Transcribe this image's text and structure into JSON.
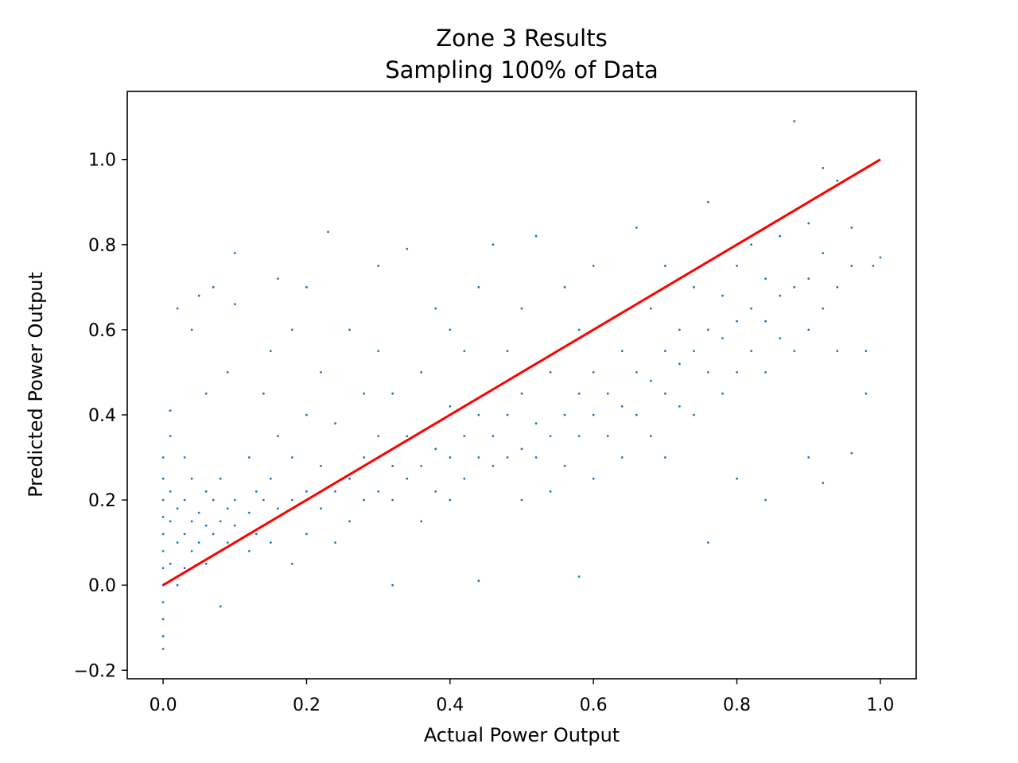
{
  "chart_data": {
    "type": "scatter",
    "title": [
      "Zone 3 Results",
      "Sampling 100% of Data"
    ],
    "xlabel": "Actual Power Output",
    "ylabel": "Predicted Power Output",
    "xlim": [
      -0.05,
      1.05
    ],
    "ylim": [
      -0.22,
      1.16
    ],
    "xticks": [
      0.0,
      0.2,
      0.4,
      0.6,
      0.8,
      1.0
    ],
    "xtick_labels": [
      "0.0",
      "0.2",
      "0.4",
      "0.6",
      "0.8",
      "1.0"
    ],
    "yticks": [
      -0.2,
      0.0,
      0.2,
      0.4,
      0.6,
      0.8,
      1.0
    ],
    "ytick_labels": [
      "−0.2",
      "0.0",
      "0.2",
      "0.4",
      "0.6",
      "0.8",
      "1.0"
    ],
    "grid": false,
    "series": [
      {
        "kind": "scatter",
        "color": "#1f77b4",
        "points": [
          [
            0.0,
            -0.15
          ],
          [
            0.0,
            -0.12
          ],
          [
            0.0,
            -0.08
          ],
          [
            0.0,
            -0.04
          ],
          [
            0.0,
            0.0
          ],
          [
            0.0,
            0.04
          ],
          [
            0.0,
            0.08
          ],
          [
            0.0,
            0.12
          ],
          [
            0.0,
            0.16
          ],
          [
            0.0,
            0.2
          ],
          [
            0.0,
            0.25
          ],
          [
            0.0,
            0.3
          ],
          [
            0.01,
            0.05
          ],
          [
            0.01,
            0.15
          ],
          [
            0.01,
            0.22
          ],
          [
            0.01,
            0.35
          ],
          [
            0.01,
            0.41
          ],
          [
            0.02,
            0.0
          ],
          [
            0.02,
            0.1
          ],
          [
            0.02,
            0.18
          ],
          [
            0.02,
            0.65
          ],
          [
            0.03,
            0.04
          ],
          [
            0.03,
            0.12
          ],
          [
            0.03,
            0.2
          ],
          [
            0.03,
            0.3
          ],
          [
            0.04,
            0.08
          ],
          [
            0.04,
            0.15
          ],
          [
            0.04,
            0.25
          ],
          [
            0.04,
            0.6
          ],
          [
            0.05,
            0.1
          ],
          [
            0.05,
            0.17
          ],
          [
            0.05,
            0.68
          ],
          [
            0.06,
            0.05
          ],
          [
            0.06,
            0.14
          ],
          [
            0.06,
            0.22
          ],
          [
            0.06,
            0.45
          ],
          [
            0.07,
            0.12
          ],
          [
            0.07,
            0.2
          ],
          [
            0.07,
            0.7
          ],
          [
            0.08,
            -0.05
          ],
          [
            0.08,
            0.15
          ],
          [
            0.08,
            0.25
          ],
          [
            0.09,
            0.1
          ],
          [
            0.09,
            0.18
          ],
          [
            0.09,
            0.5
          ],
          [
            0.1,
            0.14
          ],
          [
            0.1,
            0.2
          ],
          [
            0.1,
            0.78
          ],
          [
            0.1,
            0.66
          ],
          [
            0.12,
            0.08
          ],
          [
            0.12,
            0.17
          ],
          [
            0.12,
            0.3
          ],
          [
            0.13,
            0.12
          ],
          [
            0.13,
            0.22
          ],
          [
            0.14,
            0.2
          ],
          [
            0.14,
            0.45
          ],
          [
            0.15,
            0.1
          ],
          [
            0.15,
            0.25
          ],
          [
            0.15,
            0.55
          ],
          [
            0.16,
            0.18
          ],
          [
            0.16,
            0.35
          ],
          [
            0.16,
            0.72
          ],
          [
            0.18,
            0.05
          ],
          [
            0.18,
            0.2
          ],
          [
            0.18,
            0.3
          ],
          [
            0.18,
            0.6
          ],
          [
            0.2,
            0.12
          ],
          [
            0.2,
            0.22
          ],
          [
            0.2,
            0.4
          ],
          [
            0.2,
            0.7
          ],
          [
            0.22,
            0.18
          ],
          [
            0.22,
            0.28
          ],
          [
            0.22,
            0.5
          ],
          [
            0.23,
            0.83
          ],
          [
            0.24,
            0.1
          ],
          [
            0.24,
            0.22
          ],
          [
            0.24,
            0.38
          ],
          [
            0.26,
            0.15
          ],
          [
            0.26,
            0.25
          ],
          [
            0.26,
            0.6
          ],
          [
            0.28,
            0.2
          ],
          [
            0.28,
            0.3
          ],
          [
            0.28,
            0.45
          ],
          [
            0.3,
            0.22
          ],
          [
            0.3,
            0.35
          ],
          [
            0.3,
            0.55
          ],
          [
            0.3,
            0.75
          ],
          [
            0.32,
            0.0
          ],
          [
            0.32,
            0.2
          ],
          [
            0.32,
            0.28
          ],
          [
            0.32,
            0.45
          ],
          [
            0.34,
            0.25
          ],
          [
            0.34,
            0.35
          ],
          [
            0.34,
            0.79
          ],
          [
            0.36,
            0.15
          ],
          [
            0.36,
            0.28
          ],
          [
            0.36,
            0.5
          ],
          [
            0.38,
            0.22
          ],
          [
            0.38,
            0.32
          ],
          [
            0.38,
            0.65
          ],
          [
            0.4,
            0.2
          ],
          [
            0.4,
            0.3
          ],
          [
            0.4,
            0.42
          ],
          [
            0.4,
            0.6
          ],
          [
            0.42,
            0.25
          ],
          [
            0.42,
            0.35
          ],
          [
            0.42,
            0.55
          ],
          [
            0.44,
            0.01
          ],
          [
            0.44,
            0.3
          ],
          [
            0.44,
            0.4
          ],
          [
            0.44,
            0.7
          ],
          [
            0.46,
            0.28
          ],
          [
            0.46,
            0.35
          ],
          [
            0.46,
            0.8
          ],
          [
            0.48,
            0.3
          ],
          [
            0.48,
            0.4
          ],
          [
            0.48,
            0.55
          ],
          [
            0.5,
            0.2
          ],
          [
            0.5,
            0.32
          ],
          [
            0.5,
            0.45
          ],
          [
            0.5,
            0.65
          ],
          [
            0.52,
            0.3
          ],
          [
            0.52,
            0.38
          ],
          [
            0.52,
            0.82
          ],
          [
            0.54,
            0.22
          ],
          [
            0.54,
            0.35
          ],
          [
            0.54,
            0.5
          ],
          [
            0.56,
            0.28
          ],
          [
            0.56,
            0.4
          ],
          [
            0.56,
            0.7
          ],
          [
            0.58,
            0.02
          ],
          [
            0.58,
            0.35
          ],
          [
            0.58,
            0.45
          ],
          [
            0.58,
            0.6
          ],
          [
            0.6,
            0.25
          ],
          [
            0.6,
            0.4
          ],
          [
            0.6,
            0.5
          ],
          [
            0.6,
            0.75
          ],
          [
            0.62,
            0.35
          ],
          [
            0.62,
            0.45
          ],
          [
            0.62,
            0.62
          ],
          [
            0.64,
            0.3
          ],
          [
            0.64,
            0.42
          ],
          [
            0.64,
            0.55
          ],
          [
            0.66,
            0.4
          ],
          [
            0.66,
            0.5
          ],
          [
            0.66,
            0.84
          ],
          [
            0.68,
            0.35
          ],
          [
            0.68,
            0.48
          ],
          [
            0.68,
            0.65
          ],
          [
            0.7,
            0.3
          ],
          [
            0.7,
            0.45
          ],
          [
            0.7,
            0.55
          ],
          [
            0.7,
            0.75
          ],
          [
            0.72,
            0.42
          ],
          [
            0.72,
            0.52
          ],
          [
            0.72,
            0.6
          ],
          [
            0.74,
            0.4
          ],
          [
            0.74,
            0.55
          ],
          [
            0.74,
            0.7
          ],
          [
            0.76,
            0.1
          ],
          [
            0.76,
            0.5
          ],
          [
            0.76,
            0.6
          ],
          [
            0.76,
            0.9
          ],
          [
            0.78,
            0.45
          ],
          [
            0.78,
            0.58
          ],
          [
            0.78,
            0.68
          ],
          [
            0.8,
            0.25
          ],
          [
            0.8,
            0.5
          ],
          [
            0.8,
            0.62
          ],
          [
            0.8,
            0.75
          ],
          [
            0.82,
            0.55
          ],
          [
            0.82,
            0.65
          ],
          [
            0.82,
            0.8
          ],
          [
            0.84,
            0.2
          ],
          [
            0.84,
            0.5
          ],
          [
            0.84,
            0.62
          ],
          [
            0.84,
            0.72
          ],
          [
            0.86,
            0.58
          ],
          [
            0.86,
            0.68
          ],
          [
            0.86,
            0.82
          ],
          [
            0.88,
            1.09
          ],
          [
            0.88,
            0.55
          ],
          [
            0.88,
            0.7
          ],
          [
            0.9,
            0.3
          ],
          [
            0.9,
            0.6
          ],
          [
            0.9,
            0.72
          ],
          [
            0.9,
            0.85
          ],
          [
            0.92,
            0.98
          ],
          [
            0.92,
            0.24
          ],
          [
            0.92,
            0.65
          ],
          [
            0.92,
            0.78
          ],
          [
            0.94,
            0.55
          ],
          [
            0.94,
            0.7
          ],
          [
            0.94,
            0.95
          ],
          [
            0.96,
            0.31
          ],
          [
            0.96,
            0.75
          ],
          [
            0.96,
            0.84
          ],
          [
            0.98,
            0.45
          ],
          [
            0.98,
            0.55
          ],
          [
            0.99,
            0.75
          ],
          [
            1.0,
            0.77
          ]
        ]
      },
      {
        "kind": "line",
        "color": "#ff0000",
        "x": [
          0.0,
          1.0
        ],
        "y": [
          0.0,
          1.0
        ]
      }
    ]
  }
}
